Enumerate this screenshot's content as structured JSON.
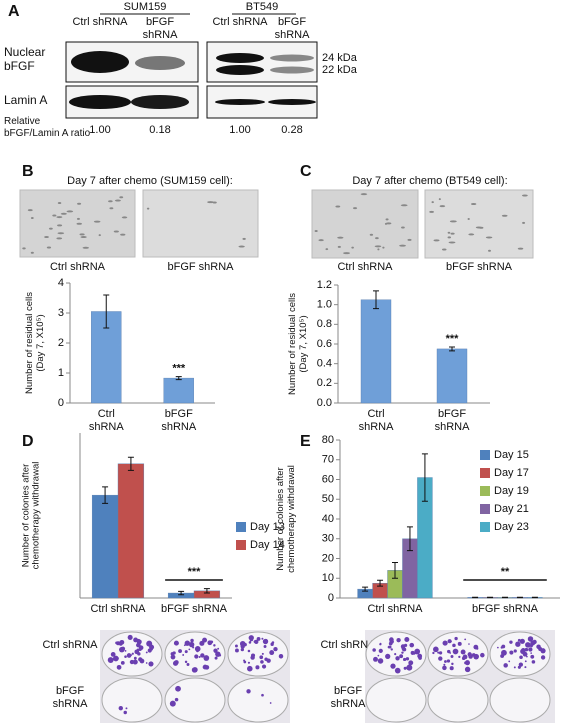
{
  "panel_labels": [
    "A",
    "B",
    "C",
    "D",
    "E"
  ],
  "blot": {
    "groups": [
      "SUM159",
      "BT549"
    ],
    "lanes": [
      "Ctrl shRNA",
      "bFGF shRNA",
      "Ctrl shRNA",
      "bFGF shRNA"
    ],
    "rows": [
      "Nuclear bFGF",
      "Lamin A"
    ],
    "markers": [
      "24 kDa",
      "22 kDa"
    ],
    "ratio_label": "Relative bFGF/Lamin A ratio",
    "ratios": [
      "1.00",
      "0.18",
      "1.00",
      "0.28"
    ]
  },
  "micrographs": [
    {
      "title": "Day 7 after chemo (SUM159 cell):",
      "captions": [
        "Ctrl shRNA",
        "bFGF shRNA"
      ]
    },
    {
      "title": "Day 7 after chemo (BT549 cell):",
      "captions": [
        "Ctrl shRNA",
        "bFGF shRNA"
      ]
    }
  ],
  "plates": [
    {
      "rows": [
        "Ctrl shRNA",
        "bFGF shRNA"
      ]
    },
    {
      "rows": [
        "Ctrl shRNA",
        "bFGF shRNA"
      ]
    }
  ],
  "chart_data": [
    {
      "type": "bar",
      "ylabel": "Number of residual cells (Day 7, X10⁵)",
      "categories": [
        "Ctrl shRNA",
        "bFGF shRNA"
      ],
      "values": [
        3.05,
        0.83
      ],
      "errors": [
        0.55,
        0.05
      ],
      "color": "#6f9fd8",
      "annotation": "***",
      "ylim": [
        0,
        4
      ],
      "yticks": [
        0,
        1,
        2,
        3,
        4
      ]
    },
    {
      "type": "bar",
      "ylabel": "Number of residual cells (Day 7, X10⁵)",
      "categories": [
        "Ctrl shRNA",
        "bFGF shRNA"
      ],
      "values": [
        1.05,
        0.55
      ],
      "errors": [
        0.09,
        0.02
      ],
      "color": "#6f9fd8",
      "annotation": "***",
      "ylim": [
        0,
        1.2
      ],
      "yticks": [
        {
          "value": 0,
          "label": "0.0"
        },
        0.2,
        0.4,
        0.6,
        0.8,
        {
          "value": 1,
          "label": "1.0"
        },
        1.2
      ]
    },
    {
      "type": "bar",
      "ylabel": "Number of colonies after chemotherapy withdrawal",
      "categories": [
        "Ctrl shRNA",
        "bFGF shRNA"
      ],
      "series": [
        {
          "name": "Day 13",
          "color": "#4f81bd",
          "values": [
            18.7,
            0.9
          ],
          "errors": [
            1.5,
            0.3
          ]
        },
        {
          "name": "Day 14",
          "color": "#c0504d",
          "values": [
            24.4,
            1.3
          ],
          "errors": [
            1.2,
            0.4
          ]
        }
      ],
      "annotation": "***",
      "ylim": [
        0,
        30
      ],
      "legend": "right"
    },
    {
      "type": "bar",
      "ylabel": "Number of colonies after chemotherapy withdrawal",
      "categories": [
        "Ctrl shRNA",
        "bFGF shRNA"
      ],
      "series": [
        {
          "name": "Day 15",
          "color": "#4f81bd",
          "values": [
            4.5,
            0.3
          ],
          "errors": [
            1,
            0.1
          ]
        },
        {
          "name": "Day 17",
          "color": "#c0504d",
          "values": [
            7.5,
            0.3
          ],
          "errors": [
            1.5,
            0.1
          ]
        },
        {
          "name": "Day 19",
          "color": "#9bbb59",
          "values": [
            14,
            0.3
          ],
          "errors": [
            4,
            0.1
          ]
        },
        {
          "name": "Day 21",
          "color": "#8064a2",
          "values": [
            30,
            0.3
          ],
          "errors": [
            6,
            0.1
          ]
        },
        {
          "name": "Day 23",
          "color": "#4bacc6",
          "values": [
            61,
            0.3
          ],
          "errors": [
            12,
            0.1
          ]
        }
      ],
      "annotation": "**",
      "ylim": [
        0,
        80
      ],
      "yticks": [
        0,
        10,
        20,
        30,
        40,
        50,
        60,
        70,
        80
      ],
      "legend": "right"
    }
  ]
}
